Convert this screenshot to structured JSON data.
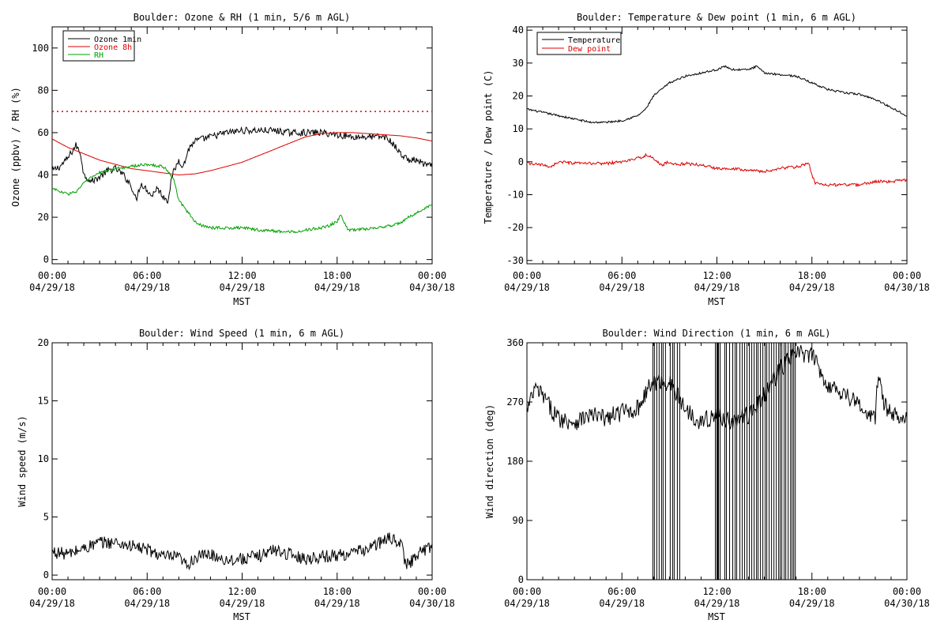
{
  "colors": {
    "black": "#000000",
    "red": "#dd0000",
    "green": "#00a000",
    "background": "#ffffff"
  },
  "xaxis": {
    "label": "MST",
    "ticks": [
      {
        "h": 0,
        "time": "00:00",
        "date": "04/29/18"
      },
      {
        "h": 6,
        "time": "06:00",
        "date": "04/29/18"
      },
      {
        "h": 12,
        "time": "12:00",
        "date": "04/29/18"
      },
      {
        "h": 18,
        "time": "18:00",
        "date": "04/29/18"
      },
      {
        "h": 24,
        "time": "00:00",
        "date": "04/30/18"
      }
    ]
  },
  "chart_data": [
    {
      "type": "line",
      "title": "Boulder: Ozone & RH (1 min, 5/6 m AGL)",
      "xlabel": "MST",
      "ylabel": "Ozone (ppbv) / RH (%)",
      "xlim": [
        "04/29/18 00:00",
        "04/30/18 00:00"
      ],
      "ylim": [
        -2,
        110
      ],
      "yticks": [
        0,
        20,
        40,
        60,
        80,
        100
      ],
      "grid": false,
      "legend_position": "top-left",
      "reference_line": {
        "y": 70,
        "style": "dotted",
        "color": "#dd0000"
      },
      "series": [
        {
          "name": "Ozone 1min",
          "color": "#000000",
          "noise": 1.6,
          "points": [
            [
              0,
              42
            ],
            [
              0.5,
              44
            ],
            [
              1,
              48
            ],
            [
              1.5,
              54
            ],
            [
              1.8,
              50
            ],
            [
              2,
              40
            ],
            [
              2.5,
              37
            ],
            [
              3,
              39
            ],
            [
              3.5,
              42
            ],
            [
              4,
              43
            ],
            [
              4.5,
              40
            ],
            [
              5,
              35
            ],
            [
              5.3,
              28
            ],
            [
              5.6,
              36
            ],
            [
              6,
              33
            ],
            [
              6.3,
              30
            ],
            [
              6.6,
              34
            ],
            [
              7,
              30
            ],
            [
              7.3,
              28
            ],
            [
              7.6,
              40
            ],
            [
              8,
              47
            ],
            [
              8.3,
              44
            ],
            [
              8.6,
              52
            ],
            [
              9,
              56
            ],
            [
              10,
              58
            ],
            [
              11,
              60
            ],
            [
              12,
              61
            ],
            [
              13,
              61
            ],
            [
              14,
              61
            ],
            [
              15,
              60
            ],
            [
              16,
              60
            ],
            [
              17,
              60
            ],
            [
              18,
              59
            ],
            [
              19,
              58
            ],
            [
              20,
              58
            ],
            [
              21,
              58
            ],
            [
              21.5,
              55
            ],
            [
              22,
              50
            ],
            [
              22.5,
              47
            ],
            [
              23,
              47
            ],
            [
              23.5,
              45
            ],
            [
              24,
              44
            ]
          ]
        },
        {
          "name": "Ozone 8h",
          "color": "#dd0000",
          "noise": 0,
          "points": [
            [
              0,
              57
            ],
            [
              1,
              53
            ],
            [
              2,
              50
            ],
            [
              3,
              47
            ],
            [
              4,
              45
            ],
            [
              5,
              43
            ],
            [
              6,
              42
            ],
            [
              7,
              41
            ],
            [
              8,
              40
            ],
            [
              9,
              40.5
            ],
            [
              10,
              42
            ],
            [
              11,
              44
            ],
            [
              12,
              46
            ],
            [
              13,
              49
            ],
            [
              14,
              52
            ],
            [
              15,
              55
            ],
            [
              16,
              58
            ],
            [
              17,
              59.5
            ],
            [
              18,
              60
            ],
            [
              19,
              60
            ],
            [
              20,
              59.5
            ],
            [
              21,
              59
            ],
            [
              22,
              58.5
            ],
            [
              23,
              57.5
            ],
            [
              24,
              56
            ]
          ]
        },
        {
          "name": "RH",
          "color": "#00a000",
          "noise": 0.7,
          "points": [
            [
              0,
              34
            ],
            [
              0.5,
              32
            ],
            [
              1,
              31
            ],
            [
              1.5,
              32
            ],
            [
              2,
              36
            ],
            [
              2.5,
              39
            ],
            [
              3,
              41
            ],
            [
              3.5,
              42
            ],
            [
              4,
              43
            ],
            [
              5,
              44
            ],
            [
              6,
              45
            ],
            [
              7,
              44
            ],
            [
              7.3,
              42
            ],
            [
              7.7,
              38
            ],
            [
              8,
              28
            ],
            [
              8.5,
              23
            ],
            [
              9,
              18
            ],
            [
              9.5,
              16
            ],
            [
              10,
              15
            ],
            [
              11,
              15
            ],
            [
              12,
              15
            ],
            [
              13,
              14
            ],
            [
              14,
              13.5
            ],
            [
              15,
              13
            ],
            [
              16,
              14
            ],
            [
              17,
              15
            ],
            [
              17.5,
              16
            ],
            [
              18,
              18
            ],
            [
              18.2,
              21
            ],
            [
              18.5,
              17
            ],
            [
              18.7,
              14
            ],
            [
              19,
              14
            ],
            [
              20,
              14.5
            ],
            [
              21,
              15.5
            ],
            [
              22,
              17
            ],
            [
              22.5,
              20
            ],
            [
              23,
              22
            ],
            [
              23.5,
              24
            ],
            [
              24,
              26
            ]
          ]
        }
      ]
    },
    {
      "type": "line",
      "title": "Boulder: Temperature & Dew point (1 min, 6 m AGL)",
      "xlabel": "MST",
      "ylabel": "Temperature / Dew point (C)",
      "xlim": [
        "04/29/18 00:00",
        "04/30/18 00:00"
      ],
      "ylim": [
        -31,
        41
      ],
      "yticks": [
        -30,
        -20,
        -10,
        0,
        10,
        20,
        30,
        40
      ],
      "grid": false,
      "legend_position": "top-left",
      "series": [
        {
          "name": "Temperature",
          "color": "#000000",
          "noise": 0.3,
          "points": [
            [
              0,
              16
            ],
            [
              1,
              15
            ],
            [
              2,
              14
            ],
            [
              3,
              13
            ],
            [
              4,
              12
            ],
            [
              5,
              12
            ],
            [
              6,
              12.5
            ],
            [
              7,
              14
            ],
            [
              7.5,
              16
            ],
            [
              8,
              20
            ],
            [
              9,
              24
            ],
            [
              10,
              26
            ],
            [
              11,
              27
            ],
            [
              12,
              28
            ],
            [
              12.5,
              29
            ],
            [
              13,
              28
            ],
            [
              14,
              28
            ],
            [
              14.5,
              29
            ],
            [
              15,
              27
            ],
            [
              16,
              26.5
            ],
            [
              17,
              26
            ],
            [
              18,
              24
            ],
            [
              19,
              22
            ],
            [
              20,
              21
            ],
            [
              21,
              20.5
            ],
            [
              22,
              19
            ],
            [
              23,
              16.5
            ],
            [
              24,
              14
            ]
          ]
        },
        {
          "name": "Dew point",
          "color": "#dd0000",
          "noise": 0.45,
          "points": [
            [
              0,
              -0.5
            ],
            [
              1,
              -1
            ],
            [
              1.5,
              -1.5
            ],
            [
              2,
              0
            ],
            [
              3,
              -0.5
            ],
            [
              4,
              -0.5
            ],
            [
              5,
              -0.5
            ],
            [
              6,
              0
            ],
            [
              7,
              1
            ],
            [
              7.5,
              2
            ],
            [
              8,
              1
            ],
            [
              8.5,
              -1
            ],
            [
              9,
              0
            ],
            [
              9.5,
              -1
            ],
            [
              10,
              -0.5
            ],
            [
              11,
              -1
            ],
            [
              12,
              -2
            ],
            [
              13,
              -2
            ],
            [
              14,
              -2.5
            ],
            [
              15,
              -3
            ],
            [
              16,
              -2
            ],
            [
              17,
              -1.5
            ],
            [
              17.5,
              -1
            ],
            [
              17.8,
              -0.5
            ],
            [
              18,
              -4
            ],
            [
              18.2,
              -6.5
            ],
            [
              19,
              -7
            ],
            [
              20,
              -7
            ],
            [
              21,
              -7
            ],
            [
              22,
              -6
            ],
            [
              23,
              -6
            ],
            [
              24,
              -5.5
            ]
          ]
        }
      ]
    },
    {
      "type": "line",
      "title": "Boulder: Wind Speed (1 min, 6 m AGL)",
      "xlabel": "MST",
      "ylabel": "Wind speed (m/s)",
      "xlim": [
        "04/29/18 00:00",
        "04/30/18 00:00"
      ],
      "ylim": [
        -0.4,
        20
      ],
      "yticks": [
        0,
        5,
        10,
        15,
        20
      ],
      "grid": false,
      "series": [
        {
          "name": "",
          "color": "#000000",
          "noise": 0.55,
          "points": [
            [
              0,
              2
            ],
            [
              1,
              1.8
            ],
            [
              2,
              2.3
            ],
            [
              3,
              2.8
            ],
            [
              4,
              2.8
            ],
            [
              5,
              2.5
            ],
            [
              6,
              2.2
            ],
            [
              7,
              1.6
            ],
            [
              8,
              1.5
            ],
            [
              8.5,
              0.8
            ],
            [
              9,
              1.5
            ],
            [
              10,
              1.8
            ],
            [
              11,
              1.3
            ],
            [
              12,
              1.4
            ],
            [
              13,
              1.6
            ],
            [
              14,
              2.2
            ],
            [
              15,
              1.8
            ],
            [
              16,
              1.4
            ],
            [
              17,
              1.6
            ],
            [
              18,
              1.7
            ],
            [
              19,
              1.9
            ],
            [
              20,
              2.3
            ],
            [
              21,
              3.0
            ],
            [
              21.5,
              3.2
            ],
            [
              22,
              2.8
            ],
            [
              22.3,
              1.2
            ],
            [
              22.5,
              0.8
            ],
            [
              23,
              1.8
            ],
            [
              24,
              2.5
            ]
          ]
        }
      ]
    },
    {
      "type": "line",
      "title": "Boulder: Wind Direction (1 min, 6 m AGL)",
      "xlabel": "MST",
      "ylabel": "Wind direction (deg)",
      "xlim": [
        "04/29/18 00:00",
        "04/30/18 00:00"
      ],
      "ylim": [
        0,
        360
      ],
      "yticks": [
        0,
        90,
        180,
        270,
        360
      ],
      "grid": false,
      "series": [
        {
          "name": "",
          "color": "#000000",
          "noise": 14,
          "points": [
            [
              0,
              255
            ],
            [
              0.5,
              290
            ],
            [
              1,
              280
            ],
            [
              1.5,
              260
            ],
            [
              2,
              245
            ],
            [
              3,
              240
            ],
            [
              4,
              250
            ],
            [
              5,
              245
            ],
            [
              6,
              255
            ],
            [
              7,
              260
            ],
            [
              7.5,
              285
            ],
            [
              8,
              300
            ],
            [
              9,
              300
            ],
            [
              10,
              260
            ],
            [
              11,
              240
            ],
            [
              12,
              250
            ],
            [
              13,
              240
            ],
            [
              14,
              250
            ],
            [
              15,
              280
            ],
            [
              16,
              320
            ],
            [
              17,
              345
            ],
            [
              18,
              340
            ],
            [
              18.5,
              320
            ],
            [
              19,
              295
            ],
            [
              20,
              285
            ],
            [
              21,
              265
            ],
            [
              21.5,
              250
            ],
            [
              22,
              245
            ],
            [
              22.2,
              320
            ],
            [
              22.5,
              270
            ],
            [
              23,
              250
            ],
            [
              24,
              250
            ]
          ]
        },
        {
          "name": "",
          "color": "#000000",
          "noise": 0,
          "style": "vertical-lines",
          "values_h": [
            7.95,
            8.05,
            8.2,
            8.35,
            8.5,
            8.6,
            8.75,
            9.05,
            9.2,
            9.3,
            9.5,
            9.65,
            11.9,
            12.0,
            12.05,
            12.1,
            12.2,
            12.5,
            12.6,
            12.8,
            13.0,
            13.15,
            13.25,
            13.45,
            13.6,
            13.75,
            13.9,
            14.05,
            14.2,
            14.35,
            14.5,
            14.6,
            14.75,
            14.9,
            15.05,
            15.15,
            15.3,
            15.45,
            15.6,
            15.75,
            15.9,
            16.0,
            16.1,
            16.25,
            16.35,
            16.5,
            16.65,
            16.75,
            16.85,
            16.95
          ]
        }
      ]
    }
  ]
}
